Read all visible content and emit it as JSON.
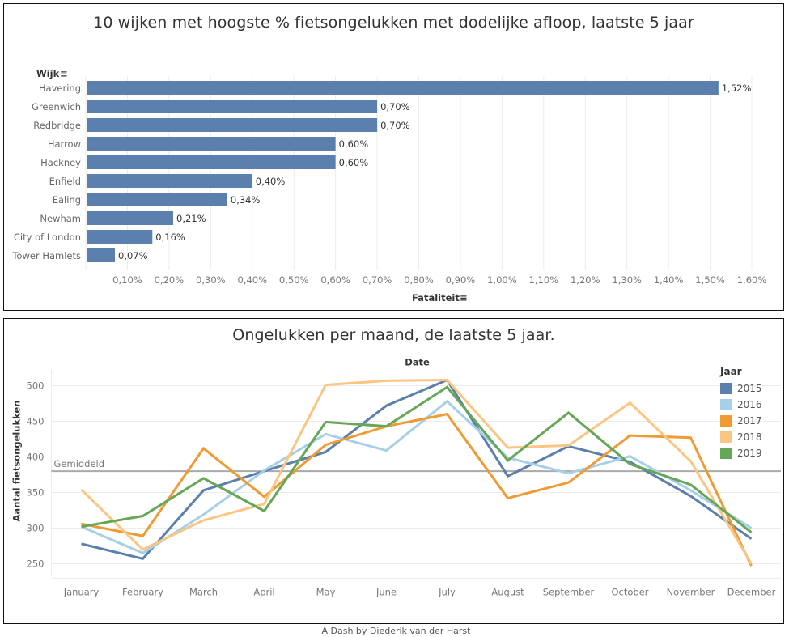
{
  "footer": "A Dash by Diederik van der Harst",
  "chart_data": [
    {
      "type": "bar",
      "orientation": "horizontal",
      "title": "10 wijken met hoogste % fietsongelukken met dodelijke afloop, laatste 5 jaar",
      "ylabel": "Wijk",
      "xlabel": "Fataliteit",
      "categories": [
        "Havering",
        "Greenwich",
        "Redbridge",
        "Harrow",
        "Hackney",
        "Enfield",
        "Ealing",
        "Newham",
        "City of London",
        "Tower Hamlets"
      ],
      "values": [
        1.52,
        0.7,
        0.7,
        0.6,
        0.6,
        0.4,
        0.34,
        0.21,
        0.16,
        0.07
      ],
      "value_labels": [
        "1,52%",
        "0,70%",
        "0,70%",
        "0,60%",
        "0,60%",
        "0,40%",
        "0,34%",
        "0,21%",
        "0,16%",
        "0,07%"
      ],
      "unit": "%",
      "xlim": [
        0,
        1.65
      ],
      "x_ticks": [
        0.1,
        0.2,
        0.3,
        0.4,
        0.5,
        0.6,
        0.7,
        0.8,
        0.9,
        1.0,
        1.1,
        1.2,
        1.3,
        1.4,
        1.5,
        1.6
      ],
      "x_tick_labels": [
        "0,10%",
        "0,20%",
        "0,30%",
        "0,40%",
        "0,50%",
        "0,60%",
        "0,70%",
        "0,80%",
        "0,90%",
        "1,00%",
        "1,10%",
        "1,20%",
        "1,30%",
        "1,40%",
        "1,50%",
        "1,60%"
      ],
      "bar_color": "#5b80ad",
      "grid": true,
      "sort_icon": "sort-descending-icon"
    },
    {
      "type": "line",
      "title": "Ongelukken per maand, de laatste 5 jaar.",
      "xlabel": "Date",
      "ylabel": "Aantal fietsongelukken",
      "x": [
        "January",
        "February",
        "March",
        "April",
        "May",
        "June",
        "July",
        "August",
        "September",
        "October",
        "November",
        "December"
      ],
      "ylim": [
        232,
        522
      ],
      "y_ticks": [
        250,
        300,
        350,
        400,
        450,
        500
      ],
      "grid": true,
      "reference_line": {
        "label": "Gemiddeld",
        "value": 380,
        "color": "#aaaaaa"
      },
      "legend": {
        "title": "Jaar",
        "position": "right"
      },
      "series": [
        {
          "name": "2015",
          "color": "#5b80ad",
          "values": [
            278,
            257,
            353,
            380,
            407,
            472,
            508,
            373,
            415,
            393,
            345,
            285
          ]
        },
        {
          "name": "2016",
          "color": "#a8cfe8",
          "values": [
            302,
            265,
            319,
            381,
            432,
            409,
            478,
            399,
            377,
            401,
            353,
            300
          ]
        },
        {
          "name": "2017",
          "color": "#f09a32",
          "values": [
            306,
            289,
            412,
            344,
            417,
            443,
            460,
            342,
            364,
            430,
            427,
            247
          ]
        },
        {
          "name": "2018",
          "color": "#fbc683",
          "values": [
            354,
            270,
            311,
            334,
            501,
            507,
            508,
            413,
            416,
            476,
            394,
            250
          ]
        },
        {
          "name": "2019",
          "color": "#66a657",
          "values": [
            302,
            317,
            370,
            324,
            449,
            443,
            498,
            395,
            462,
            390,
            361,
            294
          ]
        }
      ]
    }
  ]
}
